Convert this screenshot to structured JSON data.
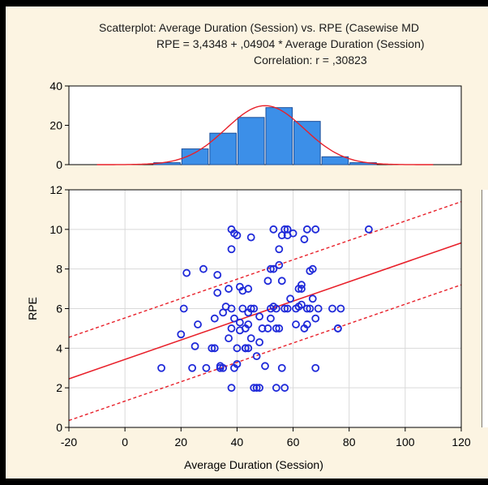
{
  "header": {
    "line1": "Scatterplot: Average Duration (Session) vs. RPE     (Casewise MD",
    "line2": "RPE      = 3,4348 + ,04904 * Average Duration (Session)",
    "line3": "Correlation: r = ,30823"
  },
  "colors": {
    "background": "#fcf4e2",
    "plot_area": "#ffffff",
    "points": "#1f2ad9",
    "fit_line": "#e8202a",
    "bars": "#3c8fe8",
    "bar_edge": "#1d4f9a",
    "grid": "#d9d9d9"
  },
  "chart_data": [
    {
      "type": "bar",
      "role": "histogram",
      "categories": [
        "-20",
        "-10",
        "0",
        "10",
        "20",
        "30",
        "40",
        "50",
        "60",
        "70",
        "80",
        "90",
        "100",
        "110"
      ],
      "bin_start": [
        -20,
        -10,
        0,
        10,
        20,
        30,
        40,
        50,
        60,
        70,
        80,
        90,
        100,
        110
      ],
      "bin_width": 10,
      "values": [
        0,
        0,
        0,
        1,
        8,
        16,
        24,
        29,
        22,
        4,
        1,
        0,
        0,
        0
      ],
      "normal_curve": {
        "mean": 50,
        "sd": 14,
        "peak": 30
      },
      "xlim": [
        -20,
        120
      ],
      "ylim": [
        0,
        40
      ],
      "yticks": [
        "0",
        "20",
        "40"
      ],
      "grid": false
    },
    {
      "type": "scatter",
      "title": "Scatterplot: Average Duration (Session) vs. RPE",
      "xlabel": "Average Duration (Session)",
      "ylabel": "RPE",
      "xlim": [
        -20,
        120
      ],
      "ylim": [
        0,
        12
      ],
      "xticks": [
        "-20",
        "0",
        "20",
        "40",
        "60",
        "80",
        "100",
        "120"
      ],
      "yticks": [
        "0",
        "2",
        "4",
        "6",
        "8",
        "10",
        "12"
      ],
      "grid": true,
      "regression": {
        "intercept": 3.4348,
        "slope": 0.04904,
        "r": 0.30823
      },
      "confidence_band": {
        "lower_at_xmin": 0.35,
        "lower_at_xmax": 7.2,
        "upper_at_xmin": 4.55,
        "upper_at_xmax": 11.4
      },
      "x": [
        13,
        20,
        21,
        22,
        24,
        25,
        26,
        28,
        29,
        31,
        32,
        32,
        33,
        33,
        34,
        34,
        35,
        35,
        36,
        37,
        37,
        38,
        38,
        38,
        38,
        38,
        39,
        39,
        39,
        40,
        40,
        40,
        41,
        41,
        41,
        42,
        42,
        43,
        43,
        43,
        44,
        44,
        44,
        44,
        45,
        45,
        45,
        46,
        46,
        47,
        47,
        48,
        48,
        48,
        49,
        50,
        51,
        51,
        52,
        52,
        52,
        53,
        53,
        53,
        54,
        54,
        54,
        55,
        55,
        55,
        56,
        56,
        56,
        57,
        57,
        57,
        58,
        58,
        58,
        59,
        60,
        61,
        61,
        62,
        62,
        63,
        63,
        63,
        64,
        64,
        65,
        65,
        65,
        66,
        66,
        67,
        67,
        68,
        68,
        68,
        69,
        74,
        76,
        76,
        77,
        87
      ],
      "y": [
        3,
        4.7,
        6,
        7.8,
        3,
        4.1,
        5.2,
        8,
        3,
        4,
        4,
        5.5,
        6.8,
        7.7,
        3,
        3.1,
        3,
        5.8,
        6.1,
        7,
        4.5,
        10,
        9,
        6,
        5,
        2,
        3,
        5.5,
        9.8,
        9.7,
        4,
        3.2,
        4.9,
        5.3,
        7.1,
        6.9,
        6,
        4,
        5,
        4,
        5.8,
        7,
        5.2,
        4,
        9.6,
        4.5,
        6,
        6,
        2,
        3.6,
        2,
        4.3,
        5.6,
        2,
        5,
        3.1,
        7.4,
        5,
        8,
        5.5,
        6,
        8,
        6.1,
        10,
        5,
        2,
        6,
        5,
        9,
        8.2,
        9.7,
        7.4,
        3,
        6,
        10,
        2,
        6,
        9.7,
        10,
        6.5,
        9.8,
        5.2,
        6,
        6.1,
        7,
        7,
        6.2,
        7.2,
        5,
        9.5,
        6,
        5.2,
        10,
        6,
        7.9,
        8,
        6.5,
        10,
        3,
        5.5,
        6,
        6,
        5,
        5,
        6,
        10
      ]
    }
  ]
}
